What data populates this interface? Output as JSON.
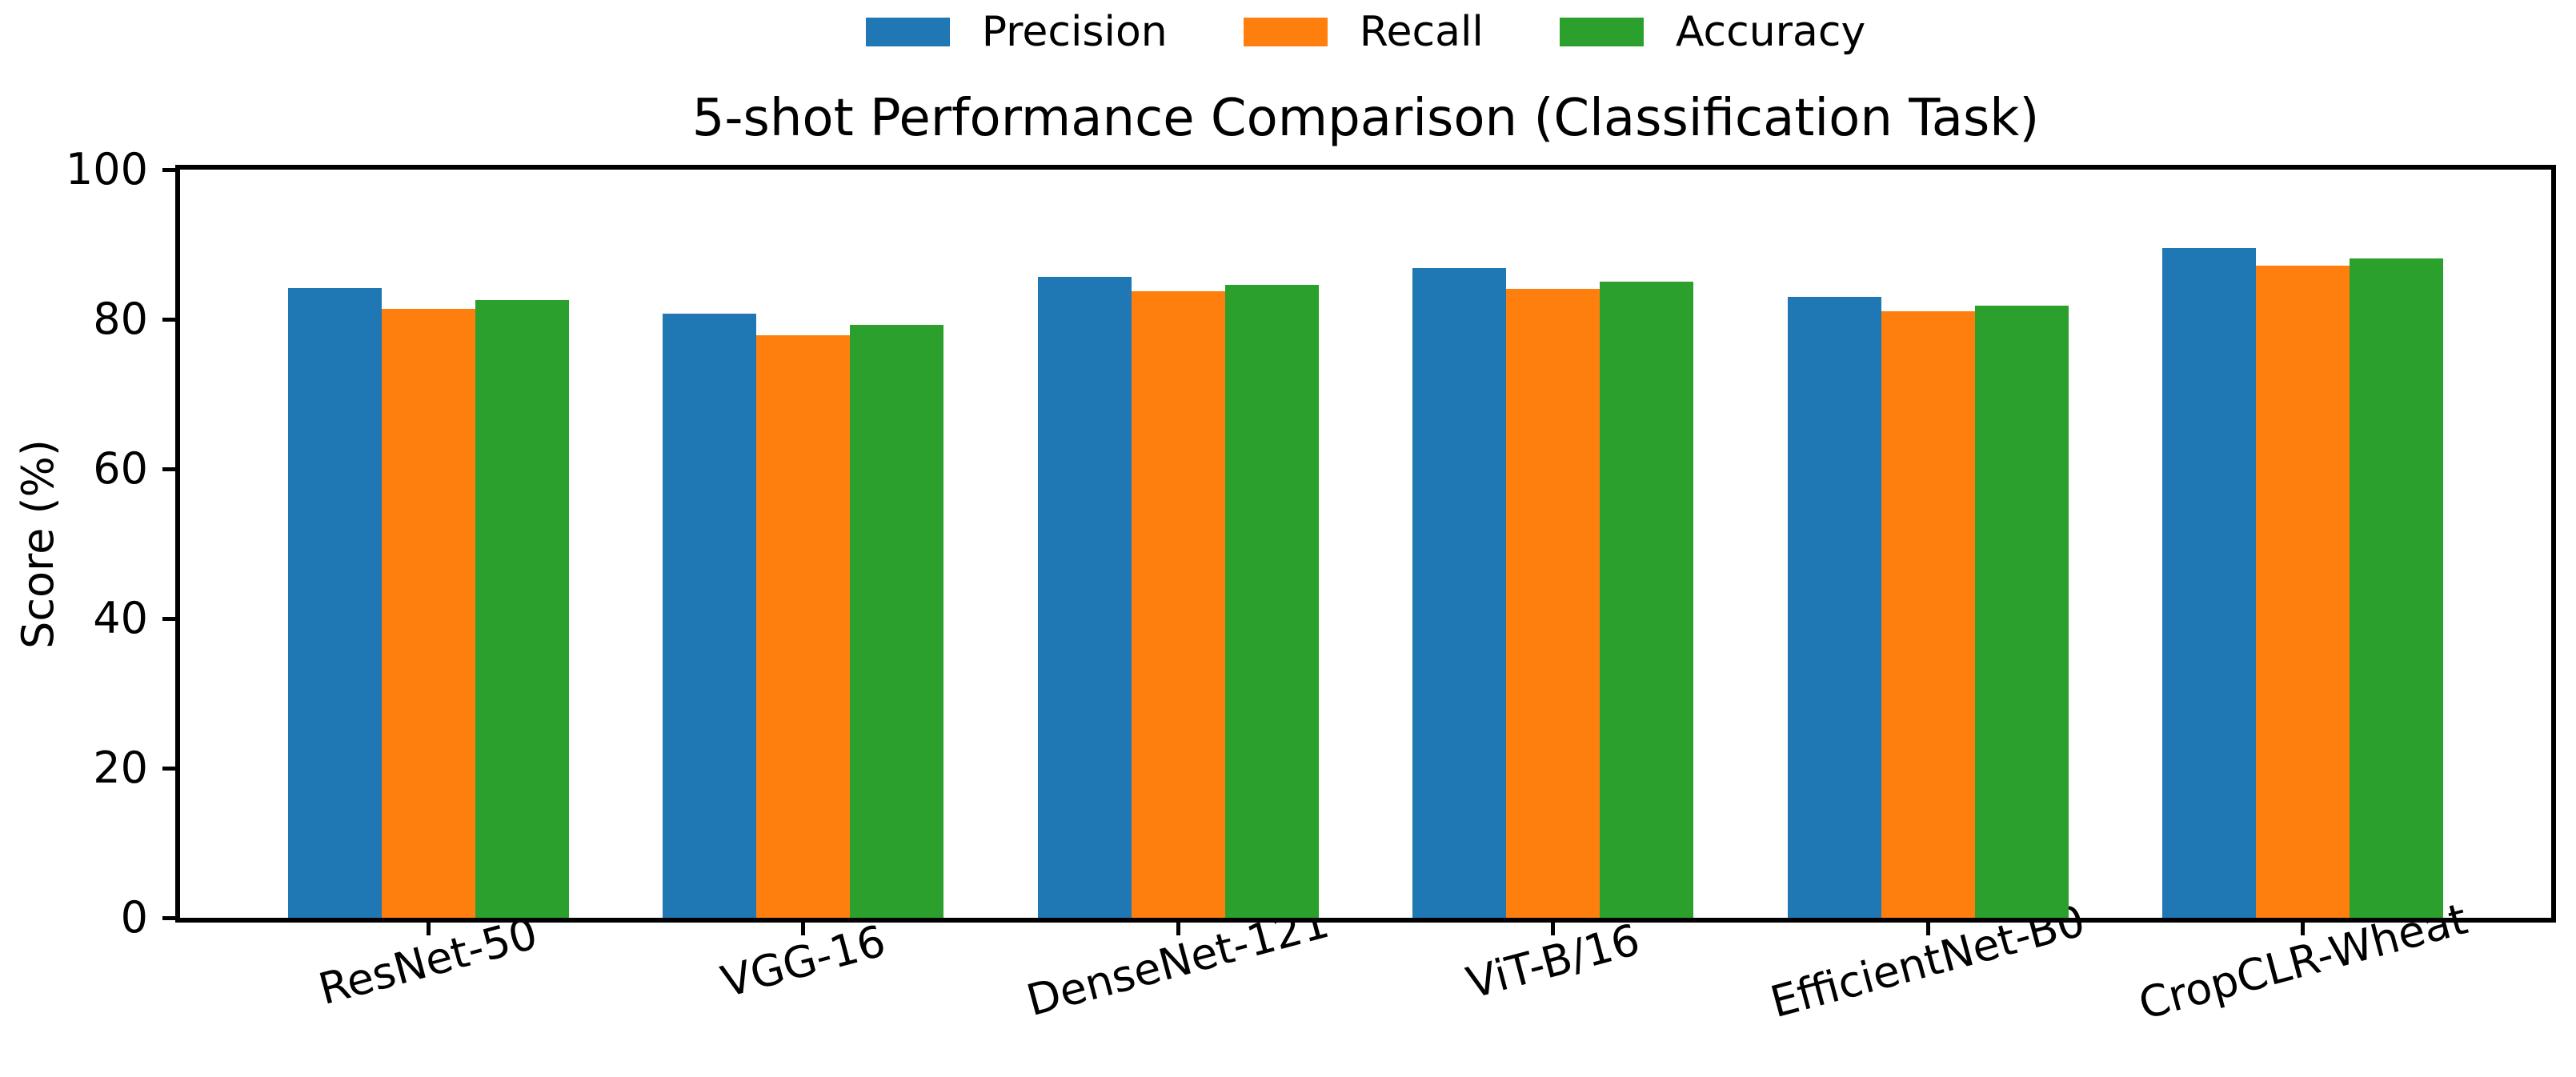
{
  "chart_data": {
    "type": "bar",
    "title": "5-shot Performance Comparison (Classification Task)",
    "xlabel": "",
    "ylabel": "Score (%)",
    "categories": [
      "ResNet-50",
      "VGG-16",
      "DenseNet-121",
      "ViT-B/16",
      "EfficientNet-B0",
      "CropCLR-Wheat"
    ],
    "series": [
      {
        "name": "Precision",
        "color": "#1f77b4",
        "values": [
          84.2,
          80.7,
          85.7,
          86.9,
          83.0,
          89.5
        ]
      },
      {
        "name": "Recall",
        "color": "#ff7f0e",
        "values": [
          81.4,
          77.9,
          83.7,
          84.1,
          81.1,
          87.2
        ]
      },
      {
        "name": "Accuracy",
        "color": "#2ca02c",
        "values": [
          82.6,
          79.2,
          84.6,
          85.0,
          81.8,
          88.1
        ]
      }
    ],
    "ylim": [
      0,
      100
    ],
    "yticks": [
      0,
      20,
      40,
      60,
      80,
      100
    ],
    "xlim": [
      -0.6625,
      5.6625
    ],
    "bar_width": 0.25,
    "group_offsets": [
      -0.25,
      0,
      0.25
    ],
    "x_tick_rotation_deg": 15,
    "grid": false,
    "legend_position": "top-center",
    "axis_color": "#000000",
    "background_color": "#ffffff"
  }
}
